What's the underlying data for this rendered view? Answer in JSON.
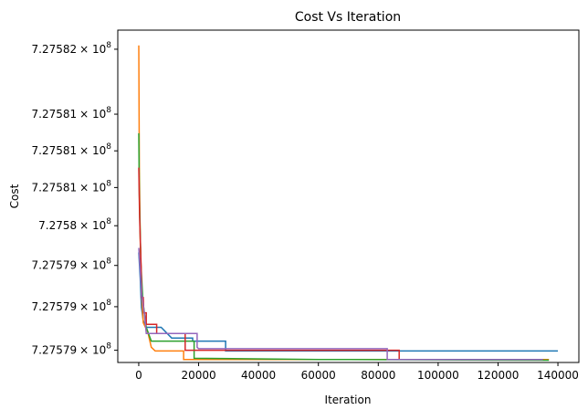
{
  "chart_data": {
    "type": "line",
    "title": "Cost Vs Iteration",
    "xlabel": "Iteration",
    "ylabel": "Cost",
    "x_ticks": [
      {
        "value": 0,
        "label": "0"
      },
      {
        "value": 20000,
        "label": "20000"
      },
      {
        "value": 40000,
        "label": "40000"
      },
      {
        "value": 60000,
        "label": "60000"
      },
      {
        "value": 80000,
        "label": "80000"
      },
      {
        "value": 100000,
        "label": "100000"
      },
      {
        "value": 120000,
        "label": "120000"
      },
      {
        "value": 140000,
        "label": "140000"
      }
    ],
    "y_ticks": [
      {
        "value": 727582200,
        "mantissa": "7.27582",
        "base": "× 10",
        "exp": "8"
      },
      {
        "value": 727581350,
        "mantissa": "7.27581",
        "base": "× 10",
        "exp": "8"
      },
      {
        "value": 727580870,
        "mantissa": "7.27581",
        "base": "× 10",
        "exp": "8"
      },
      {
        "value": 727580390,
        "mantissa": "7.27581",
        "base": "× 10",
        "exp": "8"
      },
      {
        "value": 727579890,
        "mantissa": "7.2758",
        "base": "× 10",
        "exp": "8"
      },
      {
        "value": 727579370,
        "mantissa": "7.27579",
        "base": "× 10",
        "exp": "8"
      },
      {
        "value": 727578830,
        "mantissa": "7.27579",
        "base": "× 10",
        "exp": "8"
      },
      {
        "value": 727578260,
        "mantissa": "7.27579",
        "base": "× 10",
        "exp": "8"
      }
    ],
    "xlim": [
      -7000,
      147000
    ],
    "ylim": [
      727578100,
      727582450
    ],
    "y_scale": "log",
    "grid": false,
    "series": [
      {
        "color": "#1f77b4",
        "points": [
          [
            0,
            727579540
          ],
          [
            500,
            727579200
          ],
          [
            900,
            727578820
          ],
          [
            1500,
            727578650
          ],
          [
            2500,
            727578560
          ],
          [
            7500,
            727578560
          ],
          [
            11000,
            727578420
          ],
          [
            18000,
            727578420
          ],
          [
            18000,
            727578380
          ],
          [
            29000,
            727578380
          ],
          [
            29000,
            727578250
          ],
          [
            140000,
            727578250
          ]
        ]
      },
      {
        "color": "#ff7f0e",
        "points": [
          [
            0,
            727582250
          ],
          [
            200,
            727580650
          ],
          [
            500,
            727579700
          ],
          [
            900,
            727579050
          ],
          [
            1500,
            727578620
          ],
          [
            3000,
            727578500
          ],
          [
            4200,
            727578300
          ],
          [
            5500,
            727578250
          ],
          [
            15000,
            727578250
          ],
          [
            15000,
            727578140
          ],
          [
            100000,
            727578140
          ],
          [
            137000,
            727578140
          ]
        ]
      },
      {
        "color": "#2ca02c",
        "points": [
          [
            0,
            727581100
          ],
          [
            200,
            727580300
          ],
          [
            700,
            727579400
          ],
          [
            1400,
            727578900
          ],
          [
            2500,
            727578560
          ],
          [
            4200,
            727578380
          ],
          [
            16000,
            727578380
          ],
          [
            18500,
            727578380
          ],
          [
            18500,
            727578155
          ],
          [
            60000,
            727578140
          ],
          [
            137000,
            727578130
          ]
        ]
      },
      {
        "color": "#d62728",
        "points": [
          [
            0,
            727580650
          ],
          [
            300,
            727580000
          ],
          [
            800,
            727579350
          ],
          [
            1000,
            727578950
          ],
          [
            1500,
            727578950
          ],
          [
            1700,
            727578750
          ],
          [
            2500,
            727578750
          ],
          [
            2500,
            727578600
          ],
          [
            6000,
            727578600
          ],
          [
            6000,
            727578480
          ],
          [
            15500,
            727578480
          ],
          [
            15500,
            727578260
          ],
          [
            87000,
            727578260
          ],
          [
            87000,
            727578140
          ],
          [
            135000,
            727578140
          ]
        ]
      },
      {
        "color": "#9467bd",
        "points": [
          [
            0,
            727579600
          ],
          [
            500,
            727579300
          ],
          [
            1000,
            727579000
          ],
          [
            2000,
            727578700
          ],
          [
            2500,
            727578480
          ],
          [
            19500,
            727578480
          ],
          [
            19500,
            727578300
          ],
          [
            20000,
            727578280
          ],
          [
            83000,
            727578280
          ],
          [
            83000,
            727578140
          ],
          [
            135000,
            727578140
          ]
        ]
      }
    ]
  }
}
